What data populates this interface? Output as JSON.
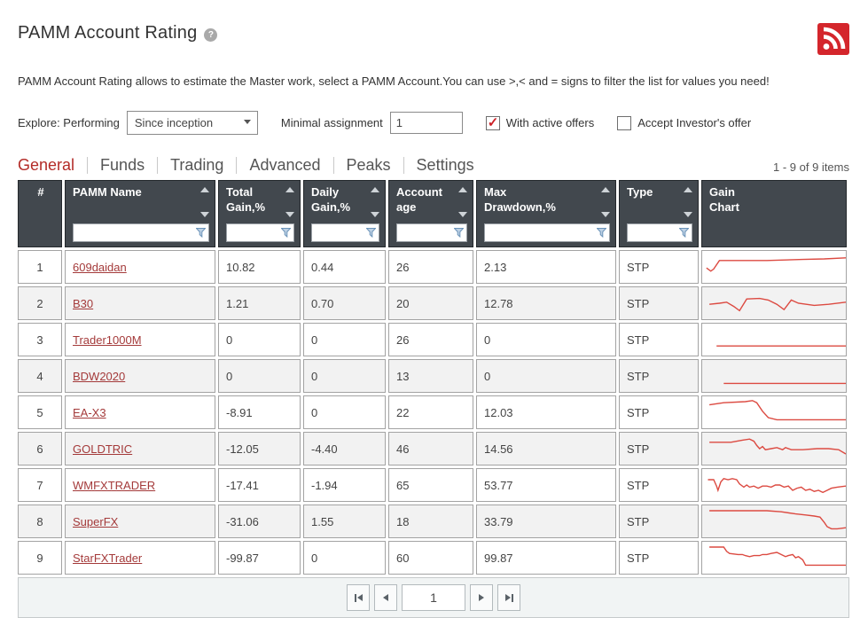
{
  "page": {
    "title": "PAMM Account Rating",
    "description": "PAMM Account Rating allows to estimate the Master work, select a PAMM Account.You can use >,< and = signs to filter the list for values you need!"
  },
  "icons": {
    "help": "question-mark-circle",
    "rss": "rss-feed",
    "sort": "up-down-triangles",
    "filter": "funnel",
    "pager": "first/prev/next/last triangles"
  },
  "colors": {
    "accent_red": "#cc2128",
    "link_red": "#a43a3a",
    "spark_red": "#dc4a41",
    "header_bg": "#42484e",
    "tab_active": "#b32b27",
    "filter_icon_blue": "#6b93b8",
    "alt_row_bg": "#f2f2f2"
  },
  "filters": {
    "explore_label": "Explore: Performing",
    "period_selected": "Since inception",
    "minimal_assignment_label": "Minimal assignment",
    "minimal_assignment_value": "1",
    "with_active_offers_label": "With active offers",
    "with_active_offers_checked": true,
    "accept_investors_label": "Accept Investor's offer",
    "accept_investors_checked": false
  },
  "tabs": [
    {
      "label": "General",
      "active": true
    },
    {
      "label": "Funds",
      "active": false
    },
    {
      "label": "Trading",
      "active": false
    },
    {
      "label": "Advanced",
      "active": false
    },
    {
      "label": "Peaks",
      "active": false
    },
    {
      "label": "Settings",
      "active": false
    }
  ],
  "items_count": "1 - 9 of 9 items",
  "table": {
    "columns": [
      {
        "label": "#",
        "sortable": false,
        "filterable": false
      },
      {
        "label": "PAMM Name",
        "sortable": true,
        "filterable": true
      },
      {
        "label": "Total\nGain,%",
        "sortable": true,
        "filterable": true
      },
      {
        "label": "Daily\nGain,%",
        "sortable": true,
        "filterable": true
      },
      {
        "label": "Account\nage",
        "sortable": true,
        "filterable": true
      },
      {
        "label": "Max\nDrawdown,%",
        "sortable": true,
        "filterable": true
      },
      {
        "label": "Type",
        "sortable": true,
        "filterable": true
      },
      {
        "label": "Gain\nChart",
        "sortable": false,
        "filterable": false
      }
    ],
    "rows": [
      {
        "index": "1",
        "name": "609daidan",
        "total_gain": "10.82",
        "daily_gain": "0.44",
        "account_age": "26",
        "max_drawdown": "2.13",
        "type": "STP",
        "spark": [
          [
            3,
            16
          ],
          [
            6,
            19
          ],
          [
            8,
            17
          ],
          [
            12,
            9
          ],
          [
            45,
            9
          ],
          [
            70,
            8
          ],
          [
            85,
            7.5
          ],
          [
            100,
            6.5
          ]
        ]
      },
      {
        "index": "2",
        "name": "B30",
        "total_gain": "1.21",
        "daily_gain": "0.70",
        "account_age": "20",
        "max_drawdown": "12.78",
        "type": "STP",
        "spark": [
          [
            5,
            16
          ],
          [
            12,
            15
          ],
          [
            17,
            14
          ],
          [
            22,
            18
          ],
          [
            26,
            22
          ],
          [
            31,
            11
          ],
          [
            40,
            10.5
          ],
          [
            46,
            12
          ],
          [
            52,
            16
          ],
          [
            57,
            21
          ],
          [
            62,
            12
          ],
          [
            67,
            15
          ],
          [
            78,
            17
          ],
          [
            88,
            16
          ],
          [
            100,
            14
          ]
        ]
      },
      {
        "index": "3",
        "name": "Trader1000M",
        "total_gain": "0",
        "daily_gain": "0",
        "account_age": "26",
        "max_drawdown": "0",
        "type": "STP",
        "spark": [
          [
            10,
            21
          ],
          [
            100,
            21
          ]
        ]
      },
      {
        "index": "4",
        "name": "BDW2020",
        "total_gain": "0",
        "daily_gain": "0",
        "account_age": "13",
        "max_drawdown": "0",
        "type": "STP",
        "spark": [
          [
            15,
            22
          ],
          [
            100,
            22
          ]
        ]
      },
      {
        "index": "5",
        "name": "EA-X3",
        "total_gain": "-8.91",
        "daily_gain": "0",
        "account_age": "22",
        "max_drawdown": "12.03",
        "type": "STP",
        "spark": [
          [
            5,
            8
          ],
          [
            15,
            6
          ],
          [
            30,
            5
          ],
          [
            35,
            4
          ],
          [
            38,
            6
          ],
          [
            42,
            14
          ],
          [
            46,
            20
          ],
          [
            52,
            22
          ],
          [
            100,
            22
          ]
        ]
      },
      {
        "index": "6",
        "name": "GOLDTRIC",
        "total_gain": "-12.05",
        "daily_gain": "-4.40",
        "account_age": "46",
        "max_drawdown": "14.56",
        "type": "STP",
        "spark": [
          [
            5,
            9
          ],
          [
            20,
            9
          ],
          [
            28,
            7
          ],
          [
            33,
            6
          ],
          [
            36,
            8
          ],
          [
            38,
            12
          ],
          [
            40,
            15
          ],
          [
            42,
            13
          ],
          [
            44,
            16
          ],
          [
            48,
            15
          ],
          [
            52,
            14
          ],
          [
            56,
            16
          ],
          [
            58,
            14
          ],
          [
            62,
            16
          ],
          [
            70,
            16
          ],
          [
            80,
            15
          ],
          [
            88,
            15
          ],
          [
            95,
            16
          ],
          [
            100,
            20
          ]
        ]
      },
      {
        "index": "7",
        "name": "WMFXTRADER",
        "total_gain": "-17.41",
        "daily_gain": "-1.94",
        "account_age": "65",
        "max_drawdown": "53.77",
        "type": "STP",
        "spark": [
          [
            4,
            10
          ],
          [
            8,
            10
          ],
          [
            10,
            16
          ],
          [
            11,
            20
          ],
          [
            13,
            12
          ],
          [
            15,
            9
          ],
          [
            18,
            10
          ],
          [
            21,
            9
          ],
          [
            24,
            10
          ],
          [
            26,
            14
          ],
          [
            29,
            17
          ],
          [
            31,
            15
          ],
          [
            33,
            17
          ],
          [
            36,
            16
          ],
          [
            39,
            18
          ],
          [
            42,
            16
          ],
          [
            45,
            16
          ],
          [
            48,
            17
          ],
          [
            51,
            15
          ],
          [
            54,
            15
          ],
          [
            57,
            17
          ],
          [
            60,
            16
          ],
          [
            63,
            20
          ],
          [
            66,
            18
          ],
          [
            69,
            17
          ],
          [
            72,
            20
          ],
          [
            75,
            19
          ],
          [
            78,
            21
          ],
          [
            81,
            20
          ],
          [
            84,
            22
          ],
          [
            87,
            20
          ],
          [
            90,
            18
          ],
          [
            94,
            17
          ],
          [
            100,
            16
          ]
        ]
      },
      {
        "index": "8",
        "name": "SuperFX",
        "total_gain": "-31.06",
        "daily_gain": "1.55",
        "account_age": "18",
        "max_drawdown": "33.79",
        "type": "STP",
        "spark": [
          [
            5,
            5
          ],
          [
            45,
            5
          ],
          [
            55,
            6
          ],
          [
            65,
            8
          ],
          [
            72,
            9
          ],
          [
            78,
            10
          ],
          [
            82,
            11
          ],
          [
            85,
            16
          ],
          [
            87,
            20
          ],
          [
            90,
            22
          ],
          [
            94,
            22
          ],
          [
            100,
            21
          ]
        ]
      },
      {
        "index": "9",
        "name": "StarFXTrader",
        "total_gain": "-99.87",
        "daily_gain": "0",
        "account_age": "60",
        "max_drawdown": "99.87",
        "type": "STP",
        "spark": [
          [
            5,
            5
          ],
          [
            15,
            5
          ],
          [
            17,
            9
          ],
          [
            19,
            11
          ],
          [
            25,
            12
          ],
          [
            28,
            12
          ],
          [
            30,
            13
          ],
          [
            33,
            14
          ],
          [
            36,
            13
          ],
          [
            40,
            13
          ],
          [
            42,
            12
          ],
          [
            45,
            12
          ],
          [
            48,
            11
          ],
          [
            52,
            10
          ],
          [
            55,
            12
          ],
          [
            58,
            14
          ],
          [
            60,
            13
          ],
          [
            63,
            12
          ],
          [
            65,
            15
          ],
          [
            67,
            14
          ],
          [
            70,
            17
          ],
          [
            72,
            22
          ],
          [
            100,
            22
          ]
        ]
      }
    ]
  },
  "pagination": {
    "page": "1"
  }
}
